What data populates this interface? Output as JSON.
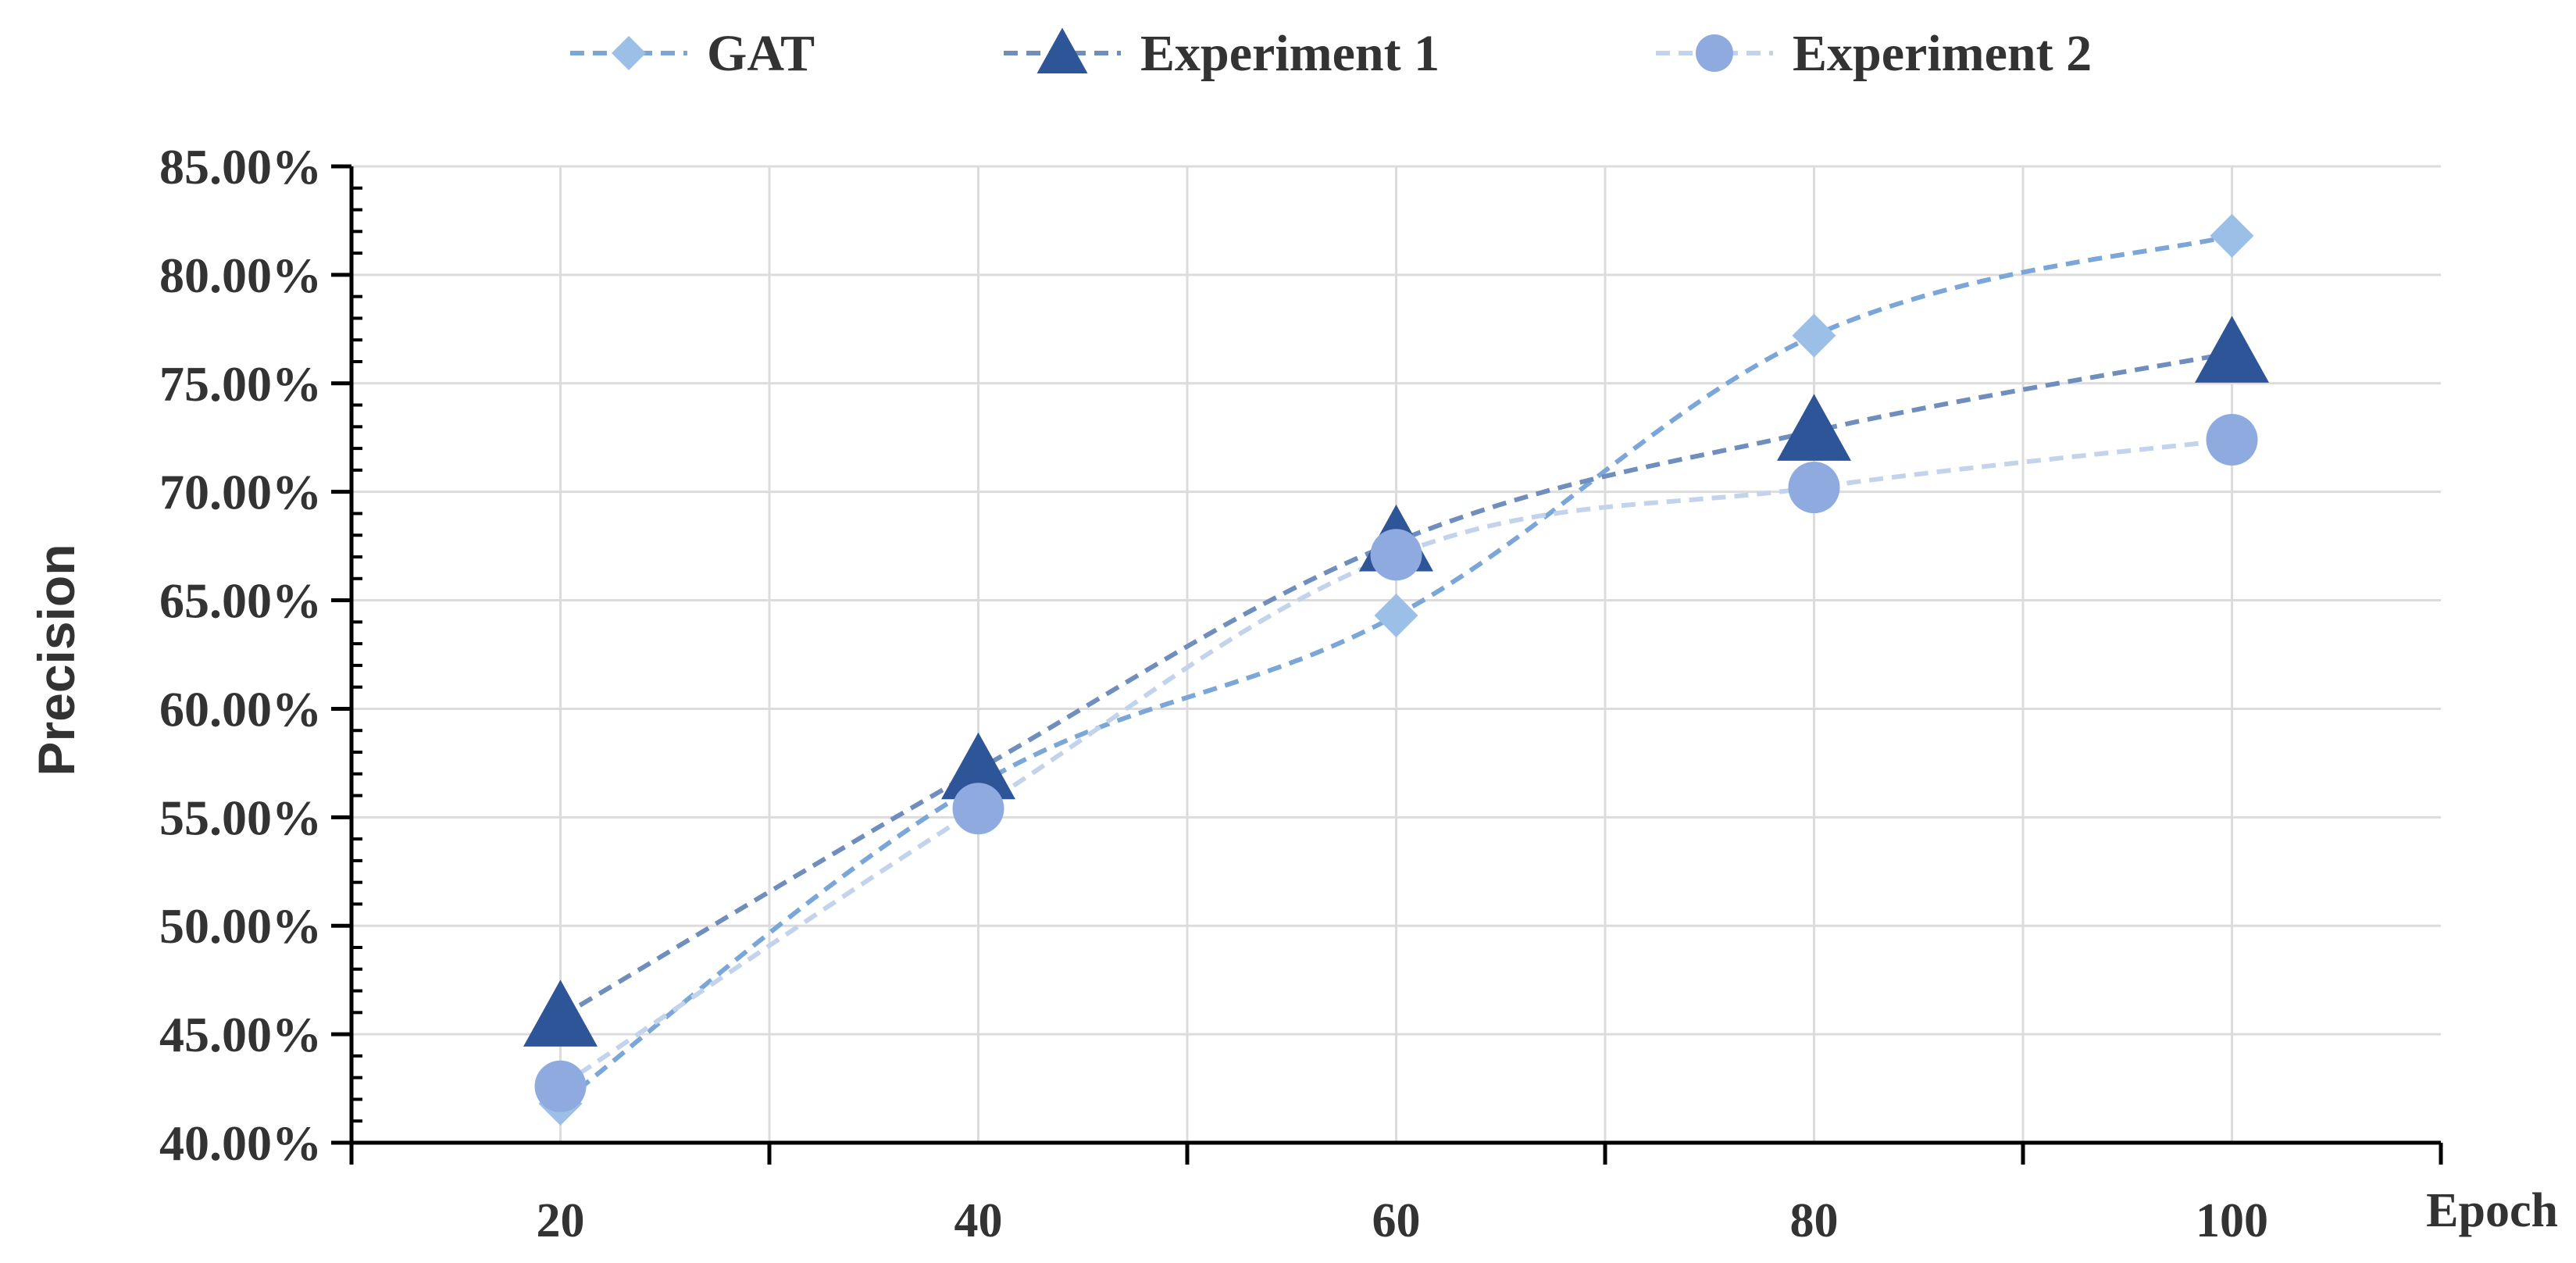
{
  "chart_data": {
    "type": "line",
    "title": "",
    "xlabel": "Epoch",
    "ylabel": "Precision",
    "categories": [
      "20",
      "40",
      "60",
      "80",
      "100"
    ],
    "x": [
      20,
      40,
      60,
      80,
      100
    ],
    "xlim": [
      10,
      110
    ],
    "ylim": [
      0.4,
      0.85
    ],
    "ytick_values": [
      0.4,
      0.45,
      0.5,
      0.55,
      0.6,
      0.65,
      0.7,
      0.75,
      0.8,
      0.85
    ],
    "ytick_labels": [
      "40.00%",
      "45.00%",
      "50.00%",
      "55.00%",
      "60.00%",
      "65.00%",
      "70.00%",
      "75.00%",
      "80.00%",
      "85.00%"
    ],
    "xgrid_values": [
      30,
      50,
      70,
      90
    ],
    "grid": true,
    "legend_position": "top-center",
    "series": [
      {
        "name": "GAT",
        "marker": "diamond",
        "color": "#9bbfe6",
        "line_color": "#7aa6d8",
        "values": [
          0.418,
          0.565,
          0.643,
          0.772,
          0.818
        ]
      },
      {
        "name": "Experiment 1",
        "marker": "triangle",
        "color": "#2e5597",
        "line_color": "#6f8dbd",
        "values": [
          0.458,
          0.572,
          0.677,
          0.728,
          0.764
        ]
      },
      {
        "name": "Experiment 2",
        "marker": "circle",
        "color": "#8eaadf",
        "line_color": "#c3d3ec",
        "values": [
          0.426,
          0.554,
          0.671,
          0.702,
          0.724
        ]
      }
    ]
  }
}
